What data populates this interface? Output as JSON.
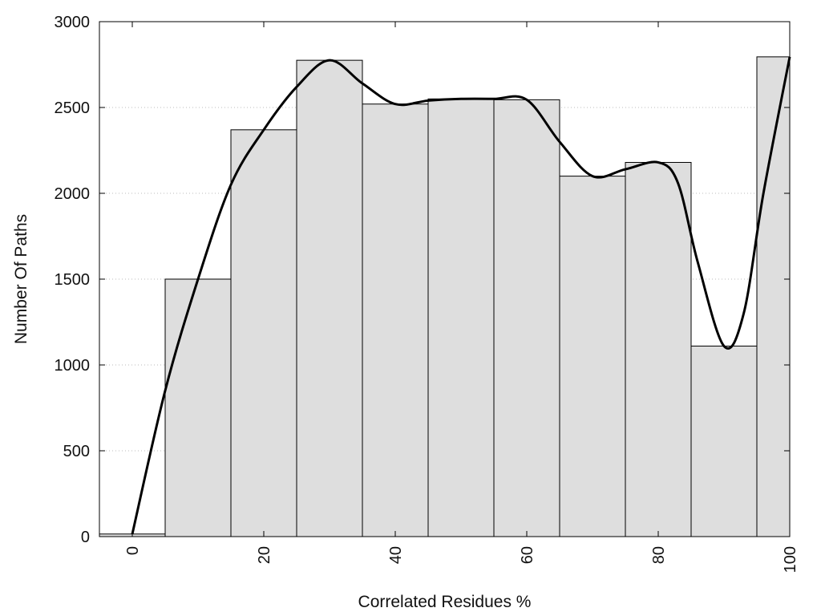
{
  "chart_data": {
    "type": "bar",
    "title": "",
    "xlabel": "Correlated Residues %",
    "ylabel": "Number Of Paths",
    "xlim": [
      -5,
      100
    ],
    "ylim": [
      0,
      3000
    ],
    "grid": "horizontal-dotted",
    "x_ticks": [
      0,
      20,
      40,
      60,
      80,
      100
    ],
    "y_ticks": [
      0,
      500,
      1000,
      1500,
      2000,
      2500,
      3000
    ],
    "bin_width": 10,
    "bins": [
      {
        "x": 0,
        "value": 15
      },
      {
        "x": 10,
        "value": 1500
      },
      {
        "x": 20,
        "value": 2370
      },
      {
        "x": 30,
        "value": 2775
      },
      {
        "x": 40,
        "value": 2520
      },
      {
        "x": 50,
        "value": 2550
      },
      {
        "x": 60,
        "value": 2545
      },
      {
        "x": 70,
        "value": 2100
      },
      {
        "x": 80,
        "value": 2180
      },
      {
        "x": 90,
        "value": 1110
      },
      {
        "x": 100,
        "value": 2795
      }
    ],
    "curve": {
      "type": "smooth-line",
      "points": [
        [
          0,
          15
        ],
        [
          5,
          850
        ],
        [
          10,
          1500
        ],
        [
          15,
          2050
        ],
        [
          20,
          2370
        ],
        [
          25,
          2620
        ],
        [
          30,
          2775
        ],
        [
          35,
          2640
        ],
        [
          40,
          2520
        ],
        [
          45,
          2540
        ],
        [
          50,
          2550
        ],
        [
          55,
          2550
        ],
        [
          60,
          2545
        ],
        [
          65,
          2300
        ],
        [
          70,
          2100
        ],
        [
          75,
          2140
        ],
        [
          80,
          2180
        ],
        [
          83,
          2060
        ],
        [
          86,
          1600
        ],
        [
          90,
          1110
        ],
        [
          93,
          1300
        ],
        [
          96,
          2000
        ],
        [
          100,
          2795
        ]
      ]
    },
    "colors": {
      "bar_fill": "#dedede",
      "bar_stroke": "#000000",
      "curve": "#000000",
      "grid": "#bbbbbb"
    }
  }
}
